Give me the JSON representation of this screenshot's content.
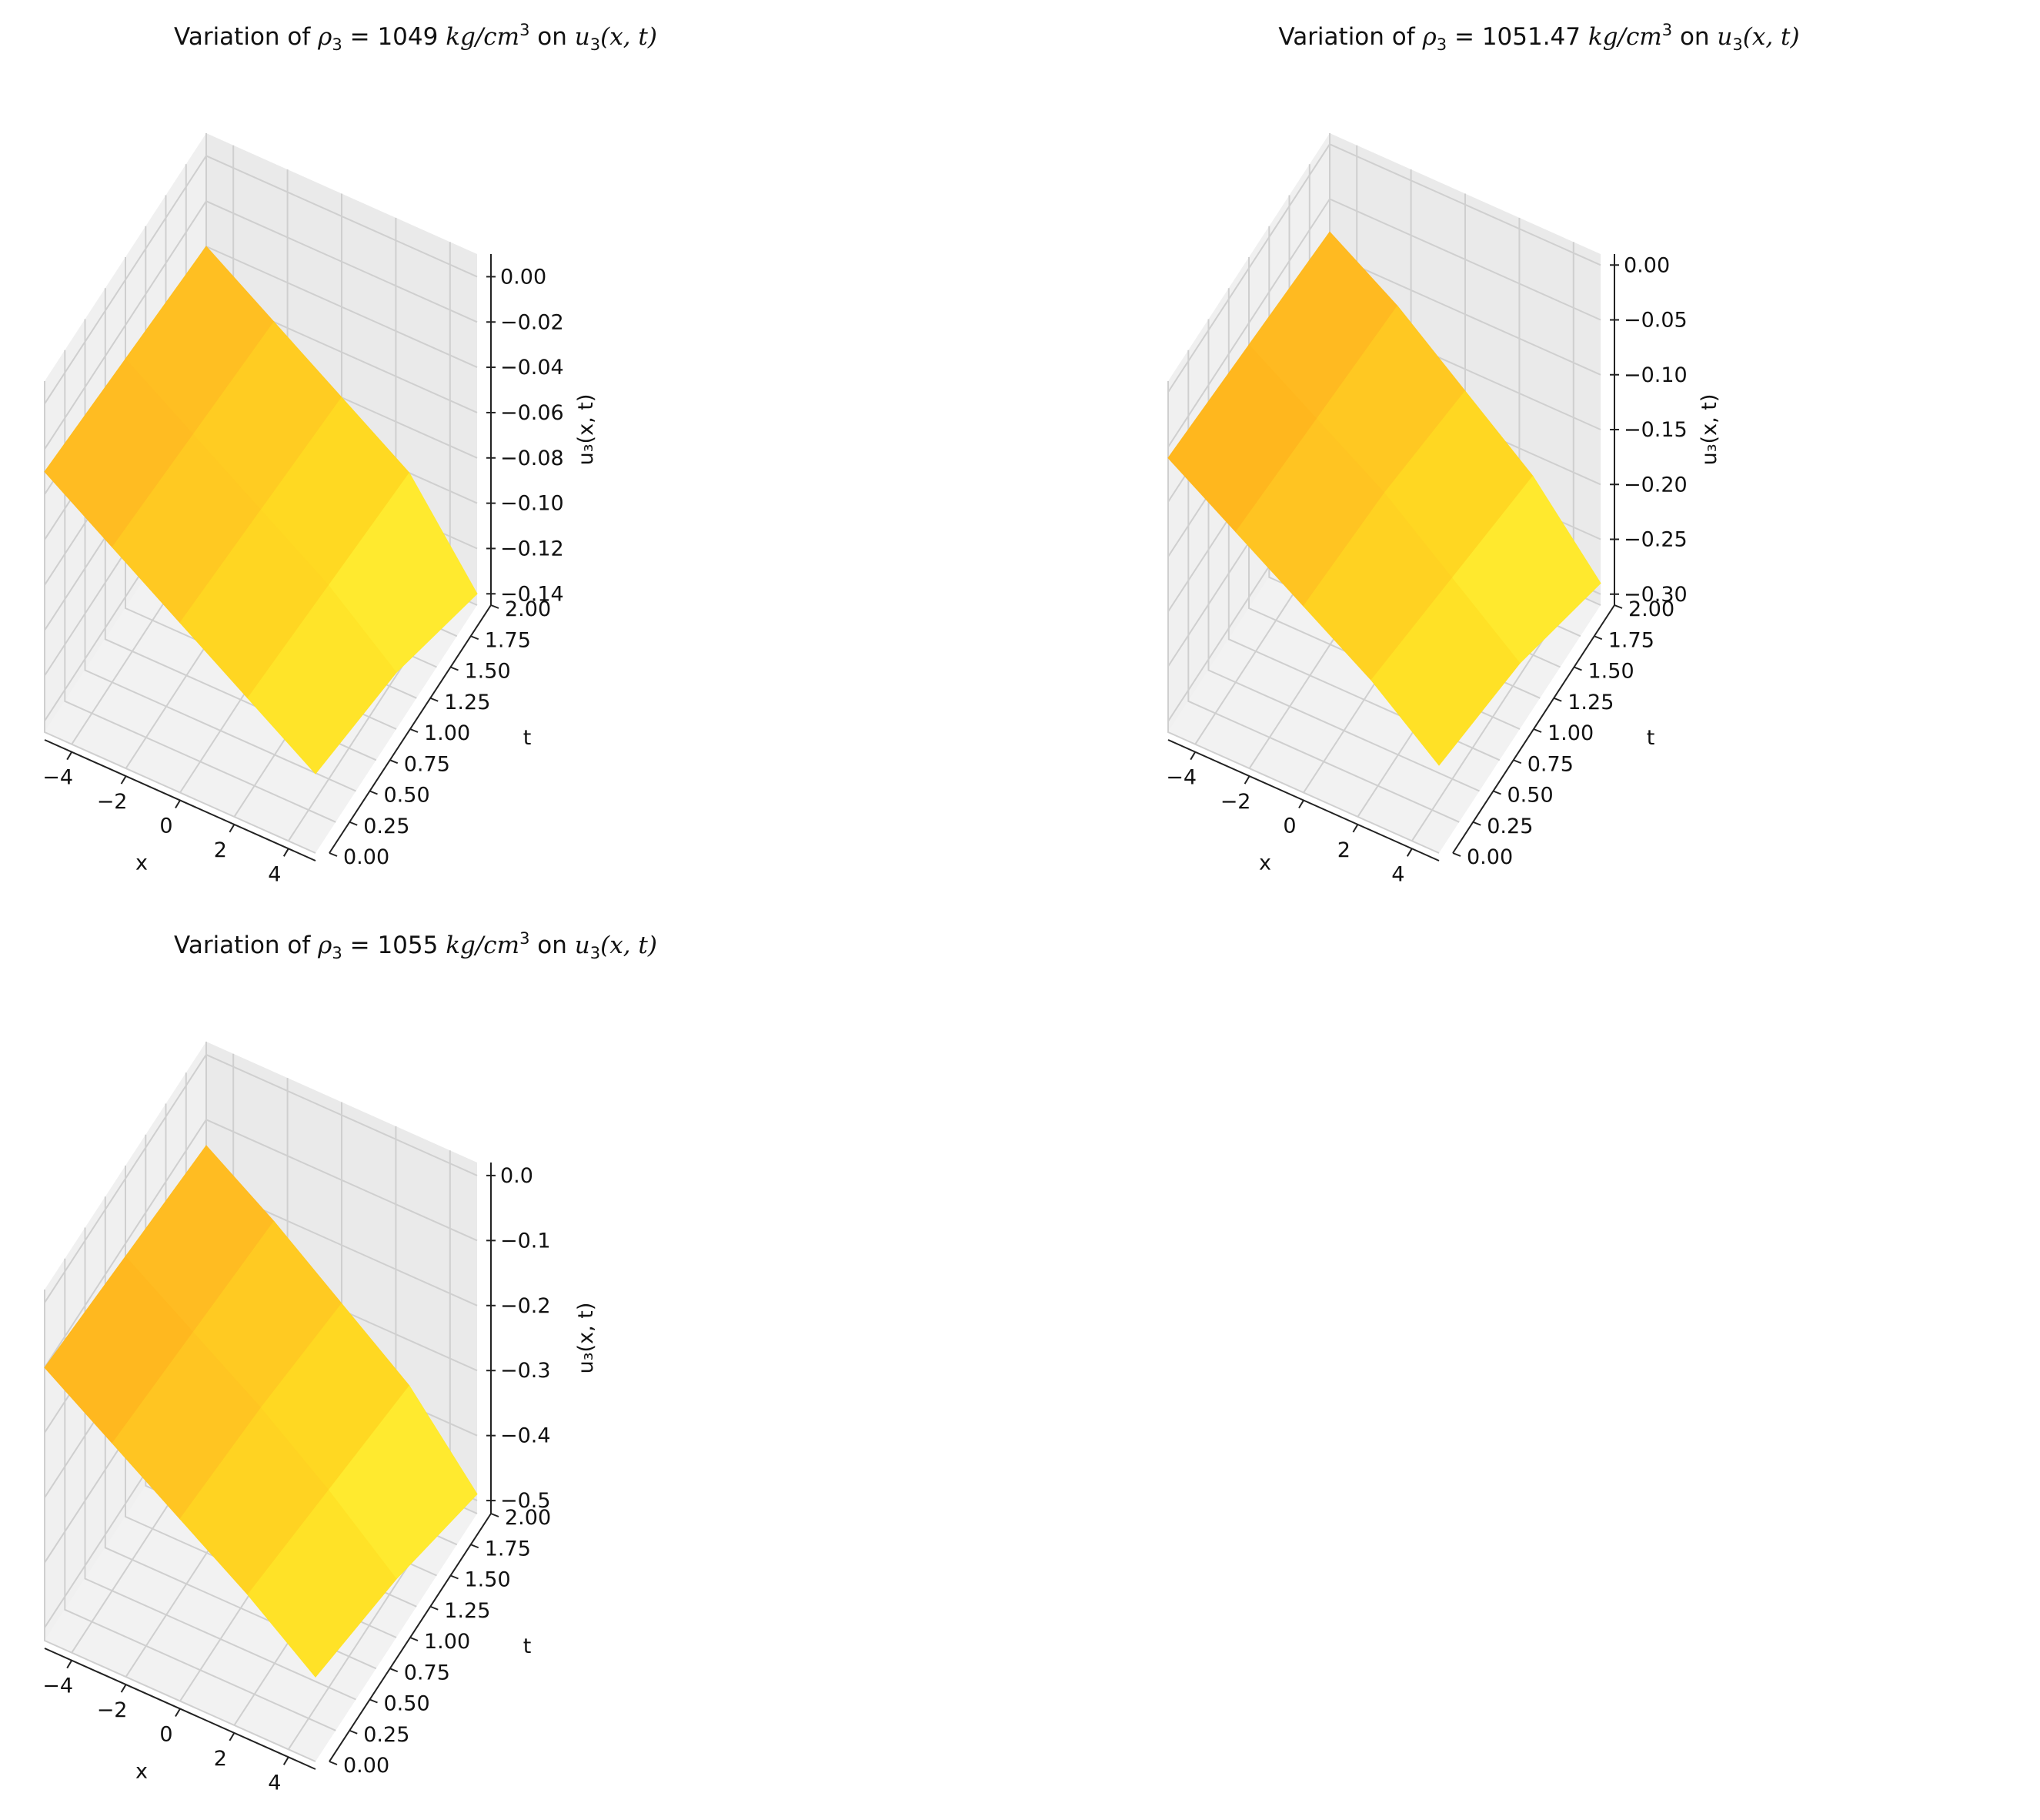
{
  "figure": {
    "panels": [
      {
        "title": {
          "prefix": "Variation of ",
          "symbol": "ρ",
          "symbol_sub": "3",
          "equals": " = ",
          "value": "1049",
          "unit_base": "kg/cm",
          "unit_sup": "3",
          "on": " on ",
          "func": "u",
          "func_sub": "3",
          "func_args": "(x, t)"
        }
      },
      {
        "title": {
          "prefix": "Variation of ",
          "symbol": "ρ",
          "symbol_sub": "3",
          "equals": " = ",
          "value": "1051.47",
          "unit_base": "kg/cm",
          "unit_sup": "3",
          "on": " on ",
          "func": "u",
          "func_sub": "3",
          "func_args": "(x, t)"
        }
      },
      {
        "title": {
          "prefix": "Variation of ",
          "symbol": "ρ",
          "symbol_sub": "3",
          "equals": " = ",
          "value": "1055",
          "unit_base": "kg/cm",
          "unit_sup": "3",
          "on": " on ",
          "func": "u",
          "func_sub": "3",
          "func_args": "(x, t)"
        }
      }
    ]
  },
  "chart_data": [
    {
      "type": "surface3d",
      "xlabel": "x",
      "ylabel": "t",
      "zlabel": "u₃(x, t)",
      "xlim": [
        -5,
        5
      ],
      "ylim": [
        0,
        2
      ],
      "zlim": [
        -0.145,
        0.01
      ],
      "x_ticks": [
        "−4",
        "−2",
        "0",
        "2",
        "4"
      ],
      "x_tick_values": [
        -4,
        -2,
        0,
        2,
        4
      ],
      "y_ticks": [
        "0.00",
        "0.25",
        "0.50",
        "0.75",
        "1.00",
        "1.25",
        "1.50",
        "1.75",
        "2.00"
      ],
      "y_tick_values": [
        0,
        0.25,
        0.5,
        0.75,
        1.0,
        1.25,
        1.5,
        1.75,
        2.0
      ],
      "z_ticks": [
        "0.00",
        "−0.02",
        "−0.04",
        "−0.06",
        "−0.08",
        "−0.10",
        "−0.12",
        "−0.14"
      ],
      "z_tick_values": [
        0,
        -0.02,
        -0.04,
        -0.06,
        -0.08,
        -0.1,
        -0.12,
        -0.14
      ],
      "surface": {
        "x": [
          -5,
          -2.5,
          0,
          2.5,
          5
        ],
        "t": [
          0,
          1,
          2
        ],
        "u": [
          [
            -0.03,
            -0.05,
            -0.07,
            -0.09,
            -0.11
          ],
          [
            -0.035,
            -0.055,
            -0.075,
            -0.095,
            -0.12
          ],
          [
            -0.04,
            -0.06,
            -0.08,
            -0.1,
            -0.14
          ]
        ]
      },
      "colormap": [
        "#ffff44",
        "#ffdd22",
        "#ffbb22",
        "#ff9a00"
      ]
    },
    {
      "type": "surface3d",
      "xlabel": "x",
      "ylabel": "t",
      "zlabel": "u₃(x, t)",
      "xlim": [
        -5,
        5
      ],
      "ylim": [
        0,
        2
      ],
      "zlim": [
        -0.31,
        0.01
      ],
      "x_ticks": [
        "−4",
        "−2",
        "0",
        "2",
        "4"
      ],
      "x_tick_values": [
        -4,
        -2,
        0,
        2,
        4
      ],
      "y_ticks": [
        "0.00",
        "0.25",
        "0.50",
        "0.75",
        "1.00",
        "1.25",
        "1.50",
        "1.75",
        "2.00"
      ],
      "y_tick_values": [
        0,
        0.25,
        0.5,
        0.75,
        1.0,
        1.25,
        1.5,
        1.75,
        2.0
      ],
      "z_ticks": [
        "0.00",
        "−0.05",
        "−0.10",
        "−0.15",
        "−0.20",
        "−0.25",
        "−0.30"
      ],
      "z_tick_values": [
        0,
        -0.05,
        -0.1,
        -0.15,
        -0.2,
        -0.25,
        -0.3
      ],
      "surface": {
        "x": [
          -5,
          -2.5,
          0,
          2.5,
          5
        ],
        "t": [
          0,
          1,
          2
        ],
        "u": [
          [
            -0.06,
            -0.1,
            -0.14,
            -0.18,
            -0.23
          ],
          [
            -0.07,
            -0.11,
            -0.15,
            -0.2,
            -0.25
          ],
          [
            -0.08,
            -0.12,
            -0.17,
            -0.22,
            -0.29
          ]
        ]
      },
      "colormap": [
        "#ffff44",
        "#ffdd22",
        "#ffbb22",
        "#ff9a00"
      ]
    },
    {
      "type": "surface3d",
      "xlabel": "x",
      "ylabel": "t",
      "zlabel": "u₃(x, t)",
      "xlim": [
        -5,
        5
      ],
      "ylim": [
        0,
        2
      ],
      "zlim": [
        -0.52,
        0.02
      ],
      "x_ticks": [
        "−4",
        "−2",
        "0",
        "2",
        "4"
      ],
      "x_tick_values": [
        -4,
        -2,
        0,
        2,
        4
      ],
      "y_ticks": [
        "0.00",
        "0.25",
        "0.50",
        "0.75",
        "1.00",
        "1.25",
        "1.50",
        "1.75",
        "2.00"
      ],
      "y_tick_values": [
        0,
        0.25,
        0.5,
        0.75,
        1.0,
        1.25,
        1.5,
        1.75,
        2.0
      ],
      "z_ticks": [
        "0.0",
        "−0.1",
        "−0.2",
        "−0.3",
        "−0.4",
        "−0.5"
      ],
      "z_tick_values": [
        0,
        -0.1,
        -0.2,
        -0.3,
        -0.4,
        -0.5
      ],
      "surface": {
        "x": [
          -5,
          -2.5,
          0,
          2.5,
          5
        ],
        "t": [
          0,
          1,
          2
        ],
        "u": [
          [
            -0.1,
            -0.17,
            -0.24,
            -0.31,
            -0.39
          ],
          [
            -0.12,
            -0.19,
            -0.26,
            -0.34,
            -0.43
          ],
          [
            -0.14,
            -0.21,
            -0.29,
            -0.37,
            -0.49
          ]
        ]
      },
      "colormap": [
        "#ffff44",
        "#ffdd22",
        "#ffbb22",
        "#ff9a00"
      ]
    }
  ]
}
